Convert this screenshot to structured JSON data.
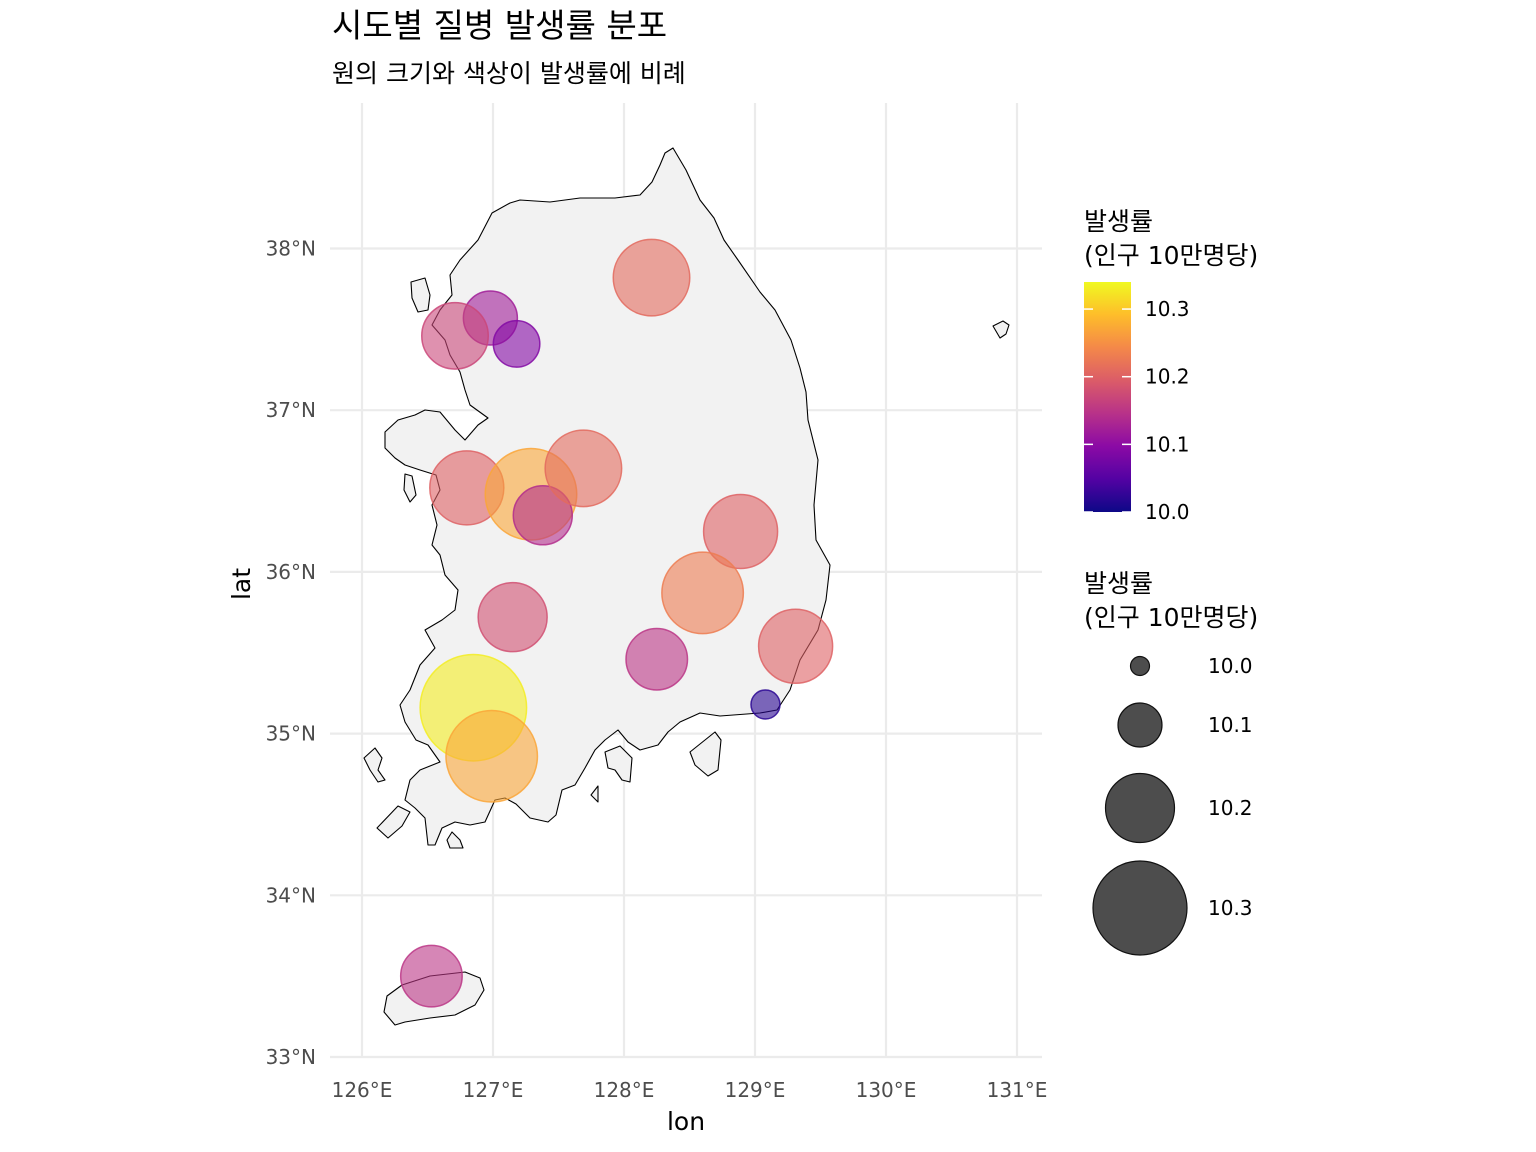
{
  "title": "시도별 질병 발생률 분포",
  "subtitle": "원의 크기와 색상이 발생률에 비례",
  "chart_data": {
    "type": "scatter",
    "map": "South Korea",
    "xlabel": "lon",
    "ylabel": "lat",
    "xlim": [
      125.95,
      131.15
    ],
    "ylim": [
      33.0,
      38.9
    ],
    "x_ticks": [
      {
        "value": 126,
        "label": "126°E"
      },
      {
        "value": 127,
        "label": "127°E"
      },
      {
        "value": 128,
        "label": "128°E"
      },
      {
        "value": 129,
        "label": "129°E"
      },
      {
        "value": 130,
        "label": "130°E"
      },
      {
        "value": 131,
        "label": "131°E"
      }
    ],
    "y_ticks": [
      {
        "value": 33,
        "label": "33°N"
      },
      {
        "value": 34,
        "label": "34°N"
      },
      {
        "value": 35,
        "label": "35°N"
      },
      {
        "value": 36,
        "label": "36°N"
      },
      {
        "value": 37,
        "label": "37°N"
      },
      {
        "value": 38,
        "label": "38°N"
      }
    ],
    "grid": true,
    "points": [
      {
        "lon": 126.98,
        "lat": 37.57,
        "rate": 10.12
      },
      {
        "lon": 126.71,
        "lat": 37.46,
        "rate": 10.17
      },
      {
        "lon": 127.18,
        "lat": 37.41,
        "rate": 10.09
      },
      {
        "lon": 128.21,
        "lat": 37.82,
        "rate": 10.21
      },
      {
        "lon": 126.8,
        "lat": 36.52,
        "rate": 10.2
      },
      {
        "lon": 127.29,
        "lat": 36.48,
        "rate": 10.27
      },
      {
        "lon": 127.38,
        "lat": 36.35,
        "rate": 10.14
      },
      {
        "lon": 127.69,
        "lat": 36.64,
        "rate": 10.21
      },
      {
        "lon": 128.89,
        "lat": 36.25,
        "rate": 10.2
      },
      {
        "lon": 128.6,
        "lat": 35.87,
        "rate": 10.23
      },
      {
        "lon": 127.15,
        "lat": 35.72,
        "rate": 10.18
      },
      {
        "lon": 128.25,
        "lat": 35.46,
        "rate": 10.15
      },
      {
        "lon": 129.31,
        "lat": 35.54,
        "rate": 10.2
      },
      {
        "lon": 129.08,
        "lat": 35.18,
        "rate": 10.02
      },
      {
        "lon": 126.85,
        "lat": 35.16,
        "rate": 10.33
      },
      {
        "lon": 126.99,
        "lat": 34.86,
        "rate": 10.27
      },
      {
        "lon": 126.53,
        "lat": 33.5,
        "rate": 10.15
      }
    ],
    "legend": {
      "placement": "right",
      "color": {
        "title": [
          "발생률",
          "(인구 10만명당)"
        ],
        "range": [
          10.0,
          10.34
        ],
        "ticks": [
          {
            "value": 10.3,
            "label": "10.3"
          },
          {
            "value": 10.2,
            "label": "10.2"
          },
          {
            "value": 10.1,
            "label": "10.1"
          },
          {
            "value": 10.0,
            "label": "10.0"
          }
        ],
        "palette": [
          "#0d0887",
          "#5302a3",
          "#8b0aa5",
          "#b83289",
          "#db5c68",
          "#f48849",
          "#febd2a",
          "#f0f921"
        ]
      },
      "size": {
        "title": [
          "발생률",
          "(인구 10만명당)"
        ],
        "entries": [
          {
            "value": 10.0,
            "label": "10.0"
          },
          {
            "value": 10.1,
            "label": "10.1"
          },
          {
            "value": 10.2,
            "label": "10.2"
          },
          {
            "value": 10.3,
            "label": "10.3"
          }
        ],
        "swatch_color": "#4d4d4d"
      }
    }
  }
}
